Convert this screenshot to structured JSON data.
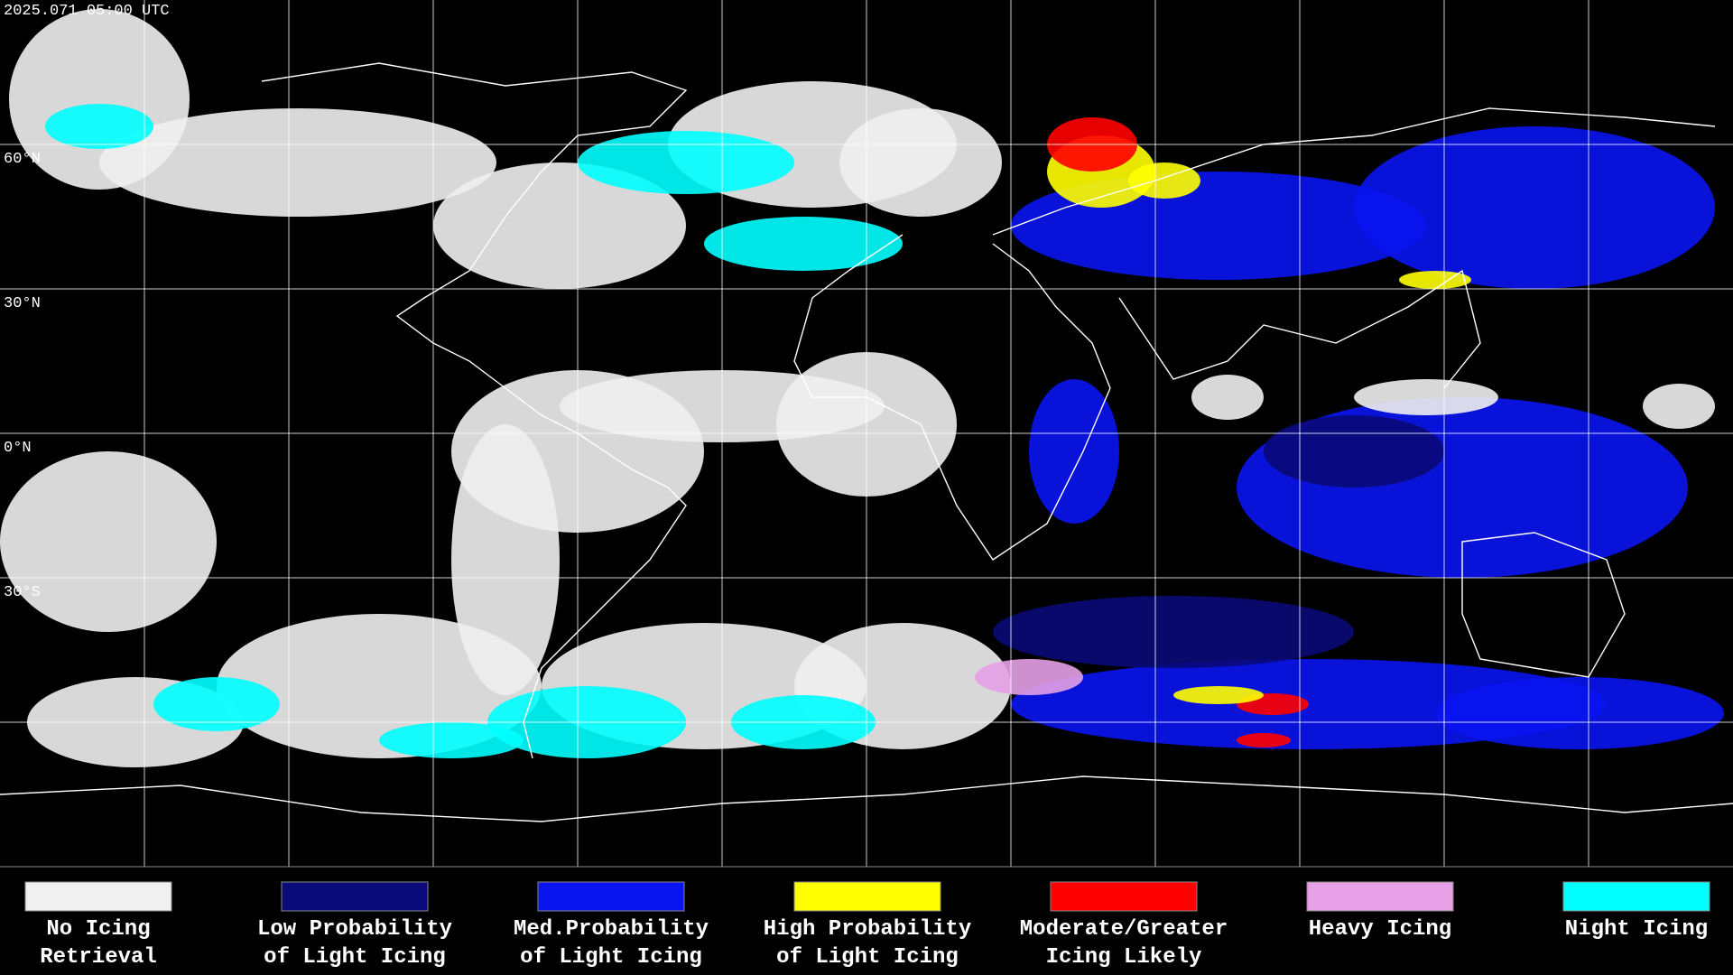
{
  "header": {
    "timestamp": "2025.071 05:00 UTC"
  },
  "latitude_labels": [
    "60°N",
    "30°N",
    "0°N",
    "30°S"
  ],
  "legend": [
    {
      "lines": [
        "No Icing",
        "Retrieval"
      ],
      "color": "#f0f0f0"
    },
    {
      "lines": [
        "Low Probability",
        "of Light Icing"
      ],
      "color": "#0a0a78"
    },
    {
      "lines": [
        "Med.Probability",
        "of Light Icing"
      ],
      "color": "#0a14f0"
    },
    {
      "lines": [
        "High Probability",
        "of Light Icing"
      ],
      "color": "#ffff00"
    },
    {
      "lines": [
        "Moderate/Greater",
        "Icing Likely"
      ],
      "color": "#ff0000"
    },
    {
      "lines": [
        "Heavy Icing"
      ],
      "color": "#e6a0e6"
    },
    {
      "lines": [
        "Night Icing"
      ],
      "color": "#00ffff"
    }
  ]
}
